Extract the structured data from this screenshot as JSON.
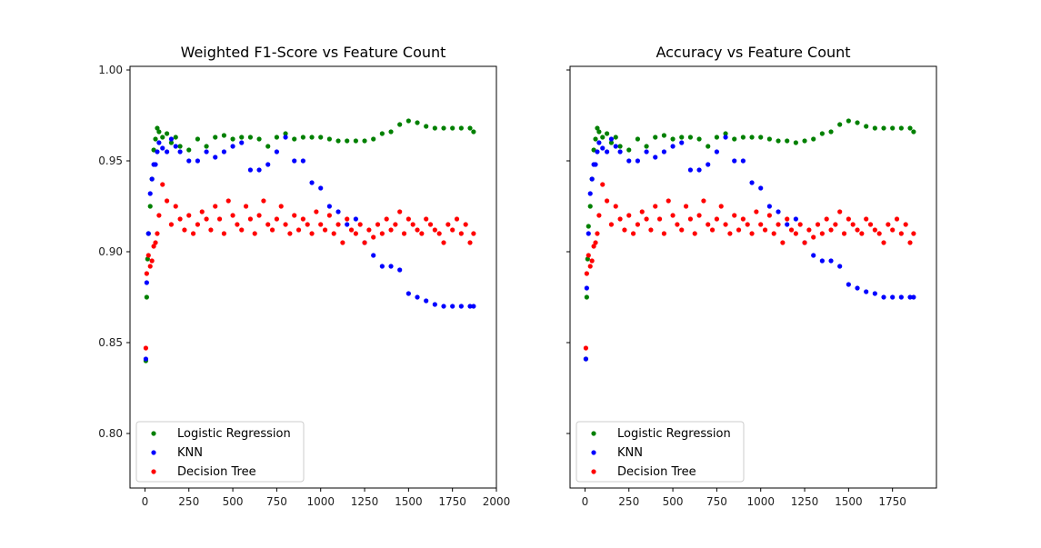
{
  "colors": {
    "logistic_regression": "#008000",
    "knn": "#0000ff",
    "decision_tree": "#ff0000"
  },
  "chart_data": [
    {
      "type": "scatter",
      "title": "Weighted F1-Score vs Feature Count",
      "xlabel": "",
      "ylabel": "",
      "xlim": [
        -85,
        2000
      ],
      "ylim": [
        0.77,
        1.002
      ],
      "xticks": [
        0,
        250,
        500,
        750,
        1000,
        1250,
        1500,
        1750,
        2000
      ],
      "xtick_labels": [
        "0",
        "250",
        "500",
        "750",
        "1000",
        "1250",
        "1500",
        "1750",
        "2000"
      ],
      "yticks": [
        0.8,
        0.85,
        0.9,
        0.95,
        1.0
      ],
      "ytick_labels": [
        "0.80",
        "0.85",
        "0.90",
        "0.95",
        "1.00"
      ],
      "grid": false,
      "legend": "lower-left",
      "series": [
        {
          "name": "Logistic Regression",
          "color": "#008000",
          "x": [
            5,
            10,
            15,
            20,
            30,
            40,
            50,
            60,
            70,
            80,
            100,
            125,
            150,
            175,
            200,
            250,
            300,
            350,
            400,
            450,
            500,
            550,
            600,
            650,
            700,
            750,
            800,
            850,
            900,
            950,
            1000,
            1050,
            1100,
            1150,
            1200,
            1250,
            1300,
            1350,
            1400,
            1450,
            1500,
            1550,
            1600,
            1650,
            1700,
            1750,
            1800,
            1850,
            1870
          ],
          "y": [
            0.84,
            0.875,
            0.896,
            0.91,
            0.925,
            0.94,
            0.956,
            0.962,
            0.968,
            0.966,
            0.963,
            0.965,
            0.96,
            0.963,
            0.958,
            0.956,
            0.962,
            0.958,
            0.963,
            0.964,
            0.962,
            0.963,
            0.963,
            0.962,
            0.958,
            0.963,
            0.965,
            0.962,
            0.963,
            0.963,
            0.963,
            0.962,
            0.961,
            0.961,
            0.961,
            0.961,
            0.962,
            0.965,
            0.966,
            0.97,
            0.972,
            0.971,
            0.969,
            0.968,
            0.968,
            0.968,
            0.968,
            0.968,
            0.966
          ]
        },
        {
          "name": "KNN",
          "color": "#0000ff",
          "x": [
            5,
            10,
            20,
            30,
            40,
            50,
            60,
            70,
            80,
            100,
            125,
            150,
            175,
            200,
            250,
            300,
            350,
            400,
            450,
            500,
            550,
            600,
            650,
            700,
            750,
            800,
            850,
            900,
            950,
            1000,
            1050,
            1100,
            1150,
            1200,
            1250,
            1300,
            1350,
            1400,
            1450,
            1500,
            1550,
            1600,
            1650,
            1700,
            1750,
            1800,
            1850,
            1870
          ],
          "y": [
            0.841,
            0.883,
            0.91,
            0.932,
            0.94,
            0.948,
            0.948,
            0.955,
            0.96,
            0.957,
            0.955,
            0.962,
            0.958,
            0.955,
            0.95,
            0.95,
            0.955,
            0.952,
            0.955,
            0.958,
            0.96,
            0.945,
            0.945,
            0.948,
            0.955,
            0.963,
            0.95,
            0.95,
            0.938,
            0.935,
            0.925,
            0.922,
            0.915,
            0.918,
            0.905,
            0.898,
            0.892,
            0.892,
            0.89,
            0.877,
            0.875,
            0.873,
            0.871,
            0.87,
            0.87,
            0.87,
            0.87,
            0.87
          ]
        },
        {
          "name": "Decision Tree",
          "color": "#ff0000",
          "x": [
            5,
            10,
            20,
            30,
            40,
            50,
            60,
            70,
            80,
            100,
            125,
            150,
            175,
            200,
            225,
            250,
            275,
            300,
            325,
            350,
            375,
            400,
            425,
            450,
            475,
            500,
            525,
            550,
            575,
            600,
            625,
            650,
            675,
            700,
            725,
            750,
            775,
            800,
            825,
            850,
            875,
            900,
            925,
            950,
            975,
            1000,
            1025,
            1050,
            1075,
            1100,
            1125,
            1150,
            1175,
            1200,
            1225,
            1250,
            1275,
            1300,
            1325,
            1350,
            1375,
            1400,
            1425,
            1450,
            1475,
            1500,
            1525,
            1550,
            1575,
            1600,
            1625,
            1650,
            1675,
            1700,
            1725,
            1750,
            1775,
            1800,
            1825,
            1850,
            1870
          ],
          "y": [
            0.847,
            0.888,
            0.898,
            0.892,
            0.895,
            0.903,
            0.905,
            0.91,
            0.92,
            0.937,
            0.928,
            0.915,
            0.925,
            0.918,
            0.912,
            0.92,
            0.91,
            0.915,
            0.922,
            0.918,
            0.912,
            0.925,
            0.918,
            0.91,
            0.928,
            0.92,
            0.915,
            0.912,
            0.925,
            0.918,
            0.91,
            0.92,
            0.928,
            0.915,
            0.912,
            0.918,
            0.925,
            0.915,
            0.91,
            0.92,
            0.912,
            0.918,
            0.915,
            0.91,
            0.922,
            0.915,
            0.912,
            0.92,
            0.91,
            0.915,
            0.905,
            0.918,
            0.912,
            0.91,
            0.915,
            0.905,
            0.912,
            0.908,
            0.915,
            0.91,
            0.918,
            0.912,
            0.915,
            0.922,
            0.91,
            0.918,
            0.915,
            0.912,
            0.91,
            0.918,
            0.915,
            0.912,
            0.91,
            0.905,
            0.915,
            0.912,
            0.918,
            0.91,
            0.915,
            0.905,
            0.91
          ]
        }
      ]
    },
    {
      "type": "scatter",
      "title": "Accuracy vs Feature Count",
      "xlabel": "",
      "ylabel": "",
      "xlim": [
        -85,
        2000
      ],
      "ylim": [
        0.77,
        1.002
      ],
      "xticks": [
        0,
        250,
        500,
        750,
        1000,
        1250,
        1500,
        1750
      ],
      "xtick_labels": [
        "0",
        "250",
        "500",
        "750",
        "1000",
        "1250",
        "1500",
        "1750"
      ],
      "yticks": [
        0.8,
        0.85,
        0.9,
        0.95,
        1.0
      ],
      "ytick_labels": [
        "",
        "",
        "",
        "",
        ""
      ],
      "grid": false,
      "legend": "lower-left",
      "series": [
        {
          "name": "Logistic Regression",
          "color": "#008000",
          "x": [
            5,
            10,
            15,
            20,
            30,
            40,
            50,
            60,
            70,
            80,
            100,
            125,
            150,
            175,
            200,
            250,
            300,
            350,
            400,
            450,
            500,
            550,
            600,
            650,
            700,
            750,
            800,
            850,
            900,
            950,
            1000,
            1050,
            1100,
            1150,
            1200,
            1250,
            1300,
            1350,
            1400,
            1450,
            1500,
            1550,
            1600,
            1650,
            1700,
            1750,
            1800,
            1850,
            1870
          ],
          "y": [
            0.841,
            0.875,
            0.896,
            0.914,
            0.925,
            0.94,
            0.956,
            0.962,
            0.968,
            0.966,
            0.963,
            0.965,
            0.96,
            0.963,
            0.958,
            0.956,
            0.962,
            0.958,
            0.963,
            0.964,
            0.962,
            0.963,
            0.963,
            0.962,
            0.958,
            0.963,
            0.965,
            0.962,
            0.963,
            0.963,
            0.963,
            0.962,
            0.961,
            0.961,
            0.96,
            0.961,
            0.962,
            0.965,
            0.966,
            0.97,
            0.972,
            0.971,
            0.969,
            0.968,
            0.968,
            0.968,
            0.968,
            0.968,
            0.966
          ]
        },
        {
          "name": "KNN",
          "color": "#0000ff",
          "x": [
            5,
            10,
            20,
            30,
            40,
            50,
            60,
            70,
            80,
            100,
            125,
            150,
            175,
            200,
            250,
            300,
            350,
            400,
            450,
            500,
            550,
            600,
            650,
            700,
            750,
            800,
            850,
            900,
            950,
            1000,
            1050,
            1100,
            1150,
            1200,
            1250,
            1300,
            1350,
            1400,
            1450,
            1500,
            1550,
            1600,
            1650,
            1700,
            1750,
            1800,
            1850,
            1870
          ],
          "y": [
            0.841,
            0.88,
            0.91,
            0.932,
            0.94,
            0.948,
            0.948,
            0.955,
            0.96,
            0.957,
            0.955,
            0.962,
            0.958,
            0.955,
            0.95,
            0.95,
            0.955,
            0.952,
            0.955,
            0.958,
            0.96,
            0.945,
            0.945,
            0.948,
            0.955,
            0.963,
            0.95,
            0.95,
            0.938,
            0.935,
            0.925,
            0.922,
            0.915,
            0.918,
            0.905,
            0.898,
            0.895,
            0.895,
            0.892,
            0.882,
            0.88,
            0.878,
            0.877,
            0.875,
            0.875,
            0.875,
            0.875,
            0.875
          ]
        },
        {
          "name": "Decision Tree",
          "color": "#ff0000",
          "x": [
            5,
            10,
            20,
            30,
            40,
            50,
            60,
            70,
            80,
            100,
            125,
            150,
            175,
            200,
            225,
            250,
            275,
            300,
            325,
            350,
            375,
            400,
            425,
            450,
            475,
            500,
            525,
            550,
            575,
            600,
            625,
            650,
            675,
            700,
            725,
            750,
            775,
            800,
            825,
            850,
            875,
            900,
            925,
            950,
            975,
            1000,
            1025,
            1050,
            1075,
            1100,
            1125,
            1150,
            1175,
            1200,
            1225,
            1250,
            1275,
            1300,
            1325,
            1350,
            1375,
            1400,
            1425,
            1450,
            1475,
            1500,
            1525,
            1550,
            1575,
            1600,
            1625,
            1650,
            1675,
            1700,
            1725,
            1750,
            1775,
            1800,
            1825,
            1850,
            1870
          ],
          "y": [
            0.847,
            0.888,
            0.898,
            0.892,
            0.895,
            0.903,
            0.905,
            0.91,
            0.92,
            0.937,
            0.928,
            0.915,
            0.925,
            0.918,
            0.912,
            0.92,
            0.91,
            0.915,
            0.922,
            0.918,
            0.912,
            0.925,
            0.918,
            0.91,
            0.928,
            0.92,
            0.915,
            0.912,
            0.925,
            0.918,
            0.91,
            0.92,
            0.928,
            0.915,
            0.912,
            0.918,
            0.925,
            0.915,
            0.91,
            0.92,
            0.912,
            0.918,
            0.915,
            0.91,
            0.922,
            0.915,
            0.912,
            0.92,
            0.91,
            0.915,
            0.905,
            0.918,
            0.912,
            0.91,
            0.915,
            0.905,
            0.912,
            0.908,
            0.915,
            0.91,
            0.918,
            0.912,
            0.915,
            0.922,
            0.91,
            0.918,
            0.915,
            0.912,
            0.91,
            0.918,
            0.915,
            0.912,
            0.91,
            0.905,
            0.915,
            0.912,
            0.918,
            0.91,
            0.915,
            0.905,
            0.91
          ]
        }
      ]
    }
  ]
}
